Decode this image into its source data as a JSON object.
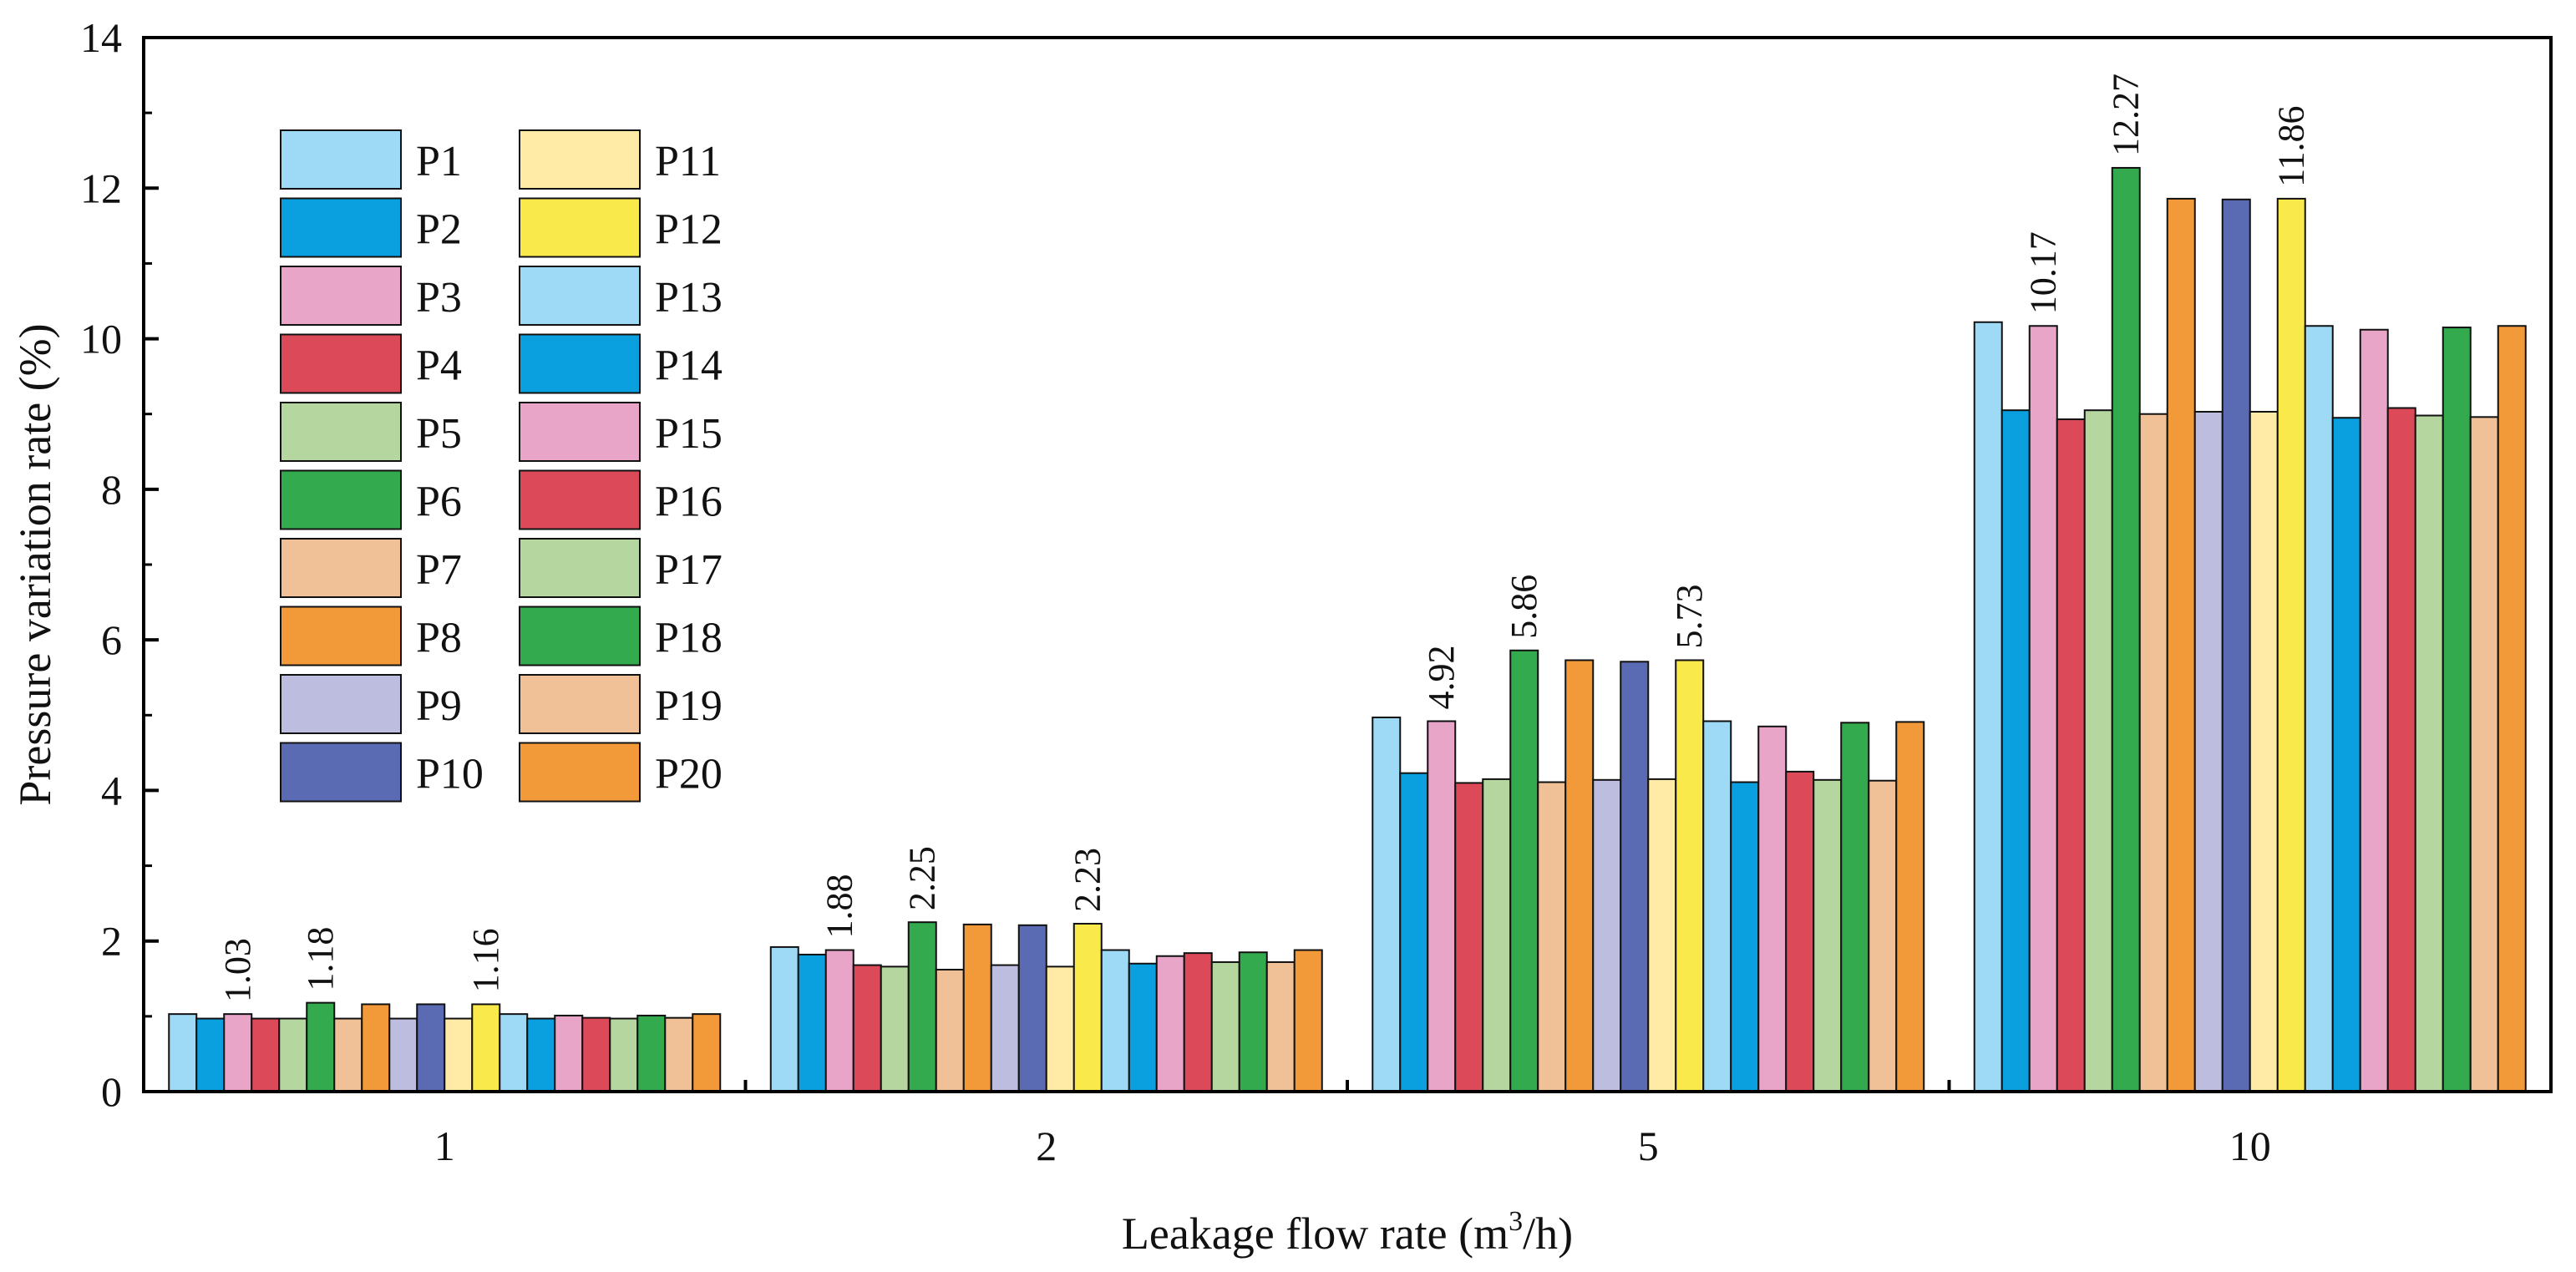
{
  "chart_data": {
    "type": "bar",
    "title": "",
    "xlabel": "Leakage flow rate (m",
    "xlabel_sup": "3",
    "xlabel_tail": "/h)",
    "ylabel": "Pressure variation rate (%)",
    "ylim": [
      0,
      14
    ],
    "yticks": [
      "0",
      "2",
      "4",
      "6",
      "8",
      "10",
      "12",
      "14"
    ],
    "grid": false,
    "legend_position": "top-left",
    "categories": [
      "1",
      "2",
      "5",
      "10"
    ],
    "series": [
      {
        "name": "P1",
        "color": "#9ED9F5",
        "values": [
          1.03,
          1.92,
          4.97,
          10.22
        ]
      },
      {
        "name": "P2",
        "color": "#0AA0E0",
        "values": [
          0.97,
          1.82,
          4.23,
          9.05
        ]
      },
      {
        "name": "P3",
        "color": "#E8A5C8",
        "values": [
          1.03,
          1.88,
          4.92,
          10.17
        ]
      },
      {
        "name": "P4",
        "color": "#DC4A5A",
        "values": [
          0.97,
          1.68,
          4.1,
          8.93
        ]
      },
      {
        "name": "P5",
        "color": "#B6D6A0",
        "values": [
          0.97,
          1.66,
          4.15,
          9.05
        ]
      },
      {
        "name": "P6",
        "color": "#33AA4D",
        "values": [
          1.18,
          2.25,
          5.86,
          12.27
        ]
      },
      {
        "name": "P7",
        "color": "#F0C096",
        "values": [
          0.97,
          1.62,
          4.11,
          9.0
        ]
      },
      {
        "name": "P8",
        "color": "#F29A3A",
        "values": [
          1.16,
          2.22,
          5.73,
          11.86
        ]
      },
      {
        "name": "P9",
        "color": "#BDBEDF",
        "values": [
          0.97,
          1.68,
          4.14,
          9.03
        ]
      },
      {
        "name": "P10",
        "color": "#5B6BB3",
        "values": [
          1.16,
          2.21,
          5.71,
          11.85
        ]
      },
      {
        "name": "P11",
        "color": "#FFEBA5",
        "values": [
          0.97,
          1.66,
          4.15,
          9.03
        ]
      },
      {
        "name": "P12",
        "color": "#FAE94A",
        "values": [
          1.16,
          2.23,
          5.73,
          11.86
        ]
      },
      {
        "name": "P13",
        "color": "#9ED9F5",
        "values": [
          1.03,
          1.88,
          4.92,
          10.17
        ]
      },
      {
        "name": "P14",
        "color": "#0AA0E0",
        "values": [
          0.97,
          1.7,
          4.11,
          8.95
        ]
      },
      {
        "name": "P15",
        "color": "#E8A5C8",
        "values": [
          1.01,
          1.8,
          4.85,
          10.12
        ]
      },
      {
        "name": "P16",
        "color": "#DC4A5A",
        "values": [
          0.98,
          1.84,
          4.25,
          9.08
        ]
      },
      {
        "name": "P17",
        "color": "#B6D6A0",
        "values": [
          0.97,
          1.72,
          4.14,
          8.98
        ]
      },
      {
        "name": "P18",
        "color": "#33AA4D",
        "values": [
          1.01,
          1.85,
          4.9,
          10.15
        ]
      },
      {
        "name": "P19",
        "color": "#F0C096",
        "values": [
          0.98,
          1.72,
          4.13,
          8.96
        ]
      },
      {
        "name": "P20",
        "color": "#F29A3A",
        "values": [
          1.03,
          1.88,
          4.91,
          10.17
        ]
      }
    ],
    "annotations": [
      {
        "category": "1",
        "series": "P3",
        "text": "1.03"
      },
      {
        "category": "1",
        "series": "P6",
        "text": "1.18"
      },
      {
        "category": "1",
        "series": "P12",
        "text": "1.16"
      },
      {
        "category": "2",
        "series": "P3",
        "text": "1.88"
      },
      {
        "category": "2",
        "series": "P6",
        "text": "2.25"
      },
      {
        "category": "2",
        "series": "P12",
        "text": "2.23"
      },
      {
        "category": "5",
        "series": "P3",
        "text": "4.92"
      },
      {
        "category": "5",
        "series": "P6",
        "text": "5.86"
      },
      {
        "category": "5",
        "series": "P12",
        "text": "5.73"
      },
      {
        "category": "10",
        "series": "P3",
        "text": "10.17"
      },
      {
        "category": "10",
        "series": "P6",
        "text": "12.27"
      },
      {
        "category": "10",
        "series": "P12",
        "text": "11.86"
      }
    ]
  }
}
